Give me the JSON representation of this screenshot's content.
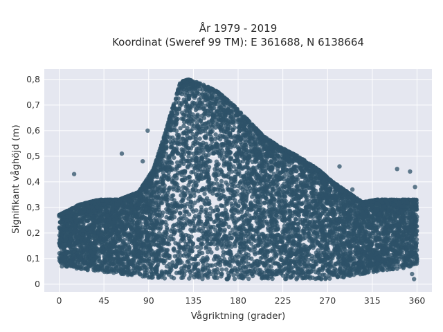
{
  "chart_data": {
    "type": "scatter",
    "title_line1": "År 1979 - 2019",
    "title_line2": "Koordinat (Sweref 99 TM): E 361688, N 6138664",
    "xlabel": "Vågriktning (grader)",
    "ylabel": "Signifikant våghöjd (m)",
    "xlim": [
      -15,
      375
    ],
    "ylim": [
      -0.03,
      0.84
    ],
    "xticks": [
      0,
      45,
      90,
      135,
      180,
      225,
      270,
      315,
      360
    ],
    "xtick_labels": [
      "0",
      "45",
      "90",
      "135",
      "180",
      "225",
      "270",
      "315",
      "360"
    ],
    "yticks": [
      0,
      0.1,
      0.2,
      0.3,
      0.4,
      0.5,
      0.6,
      0.7,
      0.8
    ],
    "ytick_labels": [
      "0",
      "0,1",
      "0,2",
      "0,3",
      "0,4",
      "0,5",
      "0,6",
      "0,7",
      "0,8"
    ],
    "grid": true,
    "point_color": "#2e5168",
    "background_color": "#e5e7f0",
    "upper_envelope": {
      "x": [
        0,
        20,
        40,
        60,
        80,
        95,
        105,
        115,
        122,
        130,
        145,
        160,
        175,
        190,
        205,
        220,
        240,
        260,
        275,
        290,
        305,
        320,
        340,
        360
      ],
      "y": [
        0.27,
        0.31,
        0.33,
        0.33,
        0.36,
        0.45,
        0.57,
        0.7,
        0.79,
        0.8,
        0.78,
        0.75,
        0.7,
        0.64,
        0.58,
        0.54,
        0.5,
        0.45,
        0.4,
        0.36,
        0.32,
        0.33,
        0.33,
        0.33
      ]
    },
    "lower_envelope": {
      "x": [
        0,
        20,
        40,
        60,
        80,
        95,
        105,
        115,
        122,
        130,
        145,
        160,
        175,
        190,
        205,
        220,
        240,
        260,
        275,
        290,
        305,
        320,
        340,
        360
      ],
      "y": [
        0.07,
        0.06,
        0.05,
        0.04,
        0.03,
        0.02,
        0.02,
        0.02,
        0.02,
        0.02,
        0.02,
        0.02,
        0.02,
        0.02,
        0.02,
        0.02,
        0.02,
        0.02,
        0.02,
        0.03,
        0.04,
        0.05,
        0.06,
        0.07
      ]
    },
    "outlier_points": [
      {
        "x": 63,
        "y": 0.51
      },
      {
        "x": 89,
        "y": 0.6
      },
      {
        "x": 15,
        "y": 0.43
      },
      {
        "x": 340,
        "y": 0.45
      },
      {
        "x": 353,
        "y": 0.44
      },
      {
        "x": 282,
        "y": 0.46
      },
      {
        "x": 295,
        "y": 0.37
      },
      {
        "x": 84,
        "y": 0.48
      },
      {
        "x": 358,
        "y": 0.38
      },
      {
        "x": 357,
        "y": 0.02
      },
      {
        "x": 355,
        "y": 0.04
      }
    ]
  }
}
